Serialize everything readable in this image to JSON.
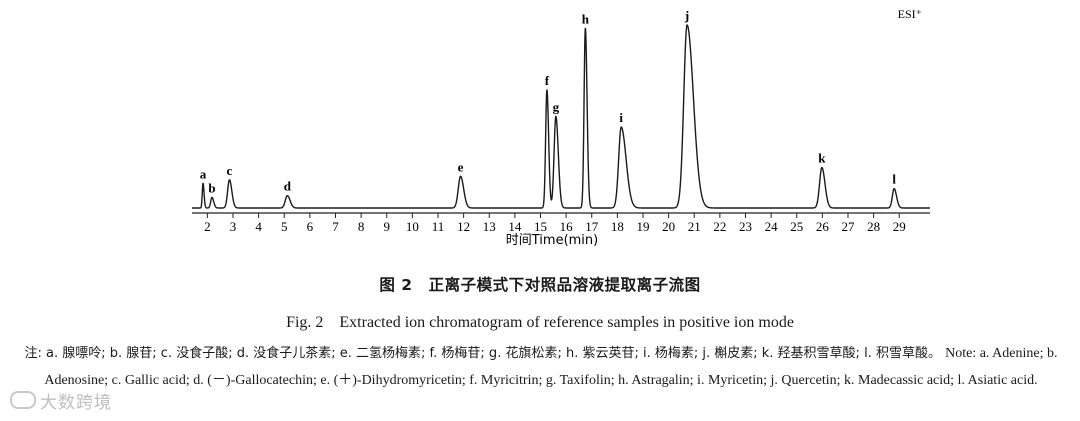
{
  "chart_data": {
    "type": "line",
    "corner_label": "ESI⁺",
    "xlabel": "时间Time(min)",
    "xlim": [
      1.4,
      30.2
    ],
    "ylim": [
      0,
      100
    ],
    "x_ticks": [
      "2",
      "3",
      "4",
      "5",
      "6",
      "7",
      "8",
      "9",
      "10",
      "11",
      "12",
      "13",
      "14",
      "15",
      "16",
      "17",
      "18",
      "19",
      "20",
      "21",
      "22",
      "23",
      "24",
      "25",
      "26",
      "27",
      "28",
      "29"
    ],
    "peaks": [
      {
        "label": "a",
        "rt": 1.83,
        "height": 14,
        "width": 0.03
      },
      {
        "label": "b",
        "rt": 2.18,
        "height": 6,
        "width": 0.05
      },
      {
        "label": "c",
        "rt": 2.86,
        "height": 16,
        "width": 0.07
      },
      {
        "label": "d",
        "rt": 5.12,
        "height": 7,
        "width": 0.08
      },
      {
        "label": "e",
        "rt": 11.88,
        "height": 18,
        "width": 0.09
      },
      {
        "label": "f",
        "rt": 15.25,
        "height": 67,
        "width": 0.05
      },
      {
        "label": "g",
        "rt": 15.6,
        "height": 52,
        "width": 0.07
      },
      {
        "label": "h",
        "rt": 16.75,
        "height": 102,
        "width": 0.05
      },
      {
        "label": "i",
        "rt": 18.15,
        "height": 46,
        "width": 0.1
      },
      {
        "label": "j",
        "rt": 20.72,
        "height": 104,
        "width": 0.13
      },
      {
        "label": "k",
        "rt": 25.98,
        "height": 23,
        "width": 0.09
      },
      {
        "label": "l",
        "rt": 28.8,
        "height": 11,
        "width": 0.07
      }
    ]
  },
  "caption": {
    "figure_cn": "图 2　正离子模式下对照品溶液提取离子流图",
    "figure_en": "Fig. 2　Extracted ion chromatogram of reference samples in positive ion mode"
  },
  "note": {
    "prefix_cn": "注: a. 腺嘌呤; b. 腺苷; c. 没食子酸; d. 没食子儿茶素; e. 二氢杨梅素; f. 杨梅苷; g. 花旗松素; h. 紫云英苷; i. 杨梅素; j. 槲皮素; k. 羟基积雪草酸; l. 积雪草酸。",
    "en": "Note: a. Adenine; b. Adenosine; c. Gallic acid; d. (－)-Gallocatechin; e. (＋)-Dihydromyricetin; f. Myricitrin; g. Taxifolin; h. Astragalin; i. Myricetin; j. Quercetin; k. Madecassic acid; l. Asiatic acid."
  },
  "watermark": "大数跨境"
}
